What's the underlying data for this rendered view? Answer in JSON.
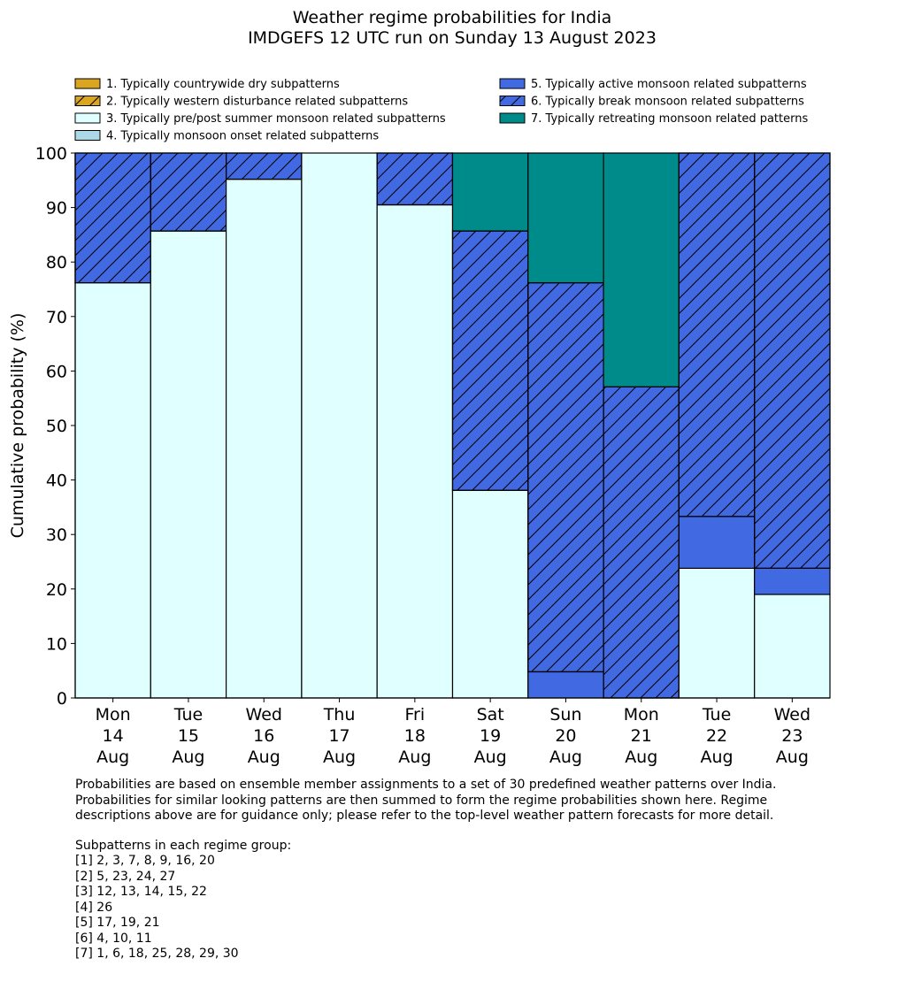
{
  "chart_data": {
    "type": "bar",
    "stacked": true,
    "title": [
      "Weather regime probabilities for India",
      "IMDGEFS 12 UTC run on Sunday 13 August 2023"
    ],
    "ylabel": "Cumulative probability (%)",
    "ylim": [
      0,
      100
    ],
    "yticks": [
      "0",
      "10",
      "20",
      "30",
      "40",
      "50",
      "60",
      "70",
      "80",
      "90",
      "100"
    ],
    "categories": [
      [
        "Mon",
        "14",
        "Aug"
      ],
      [
        "Tue",
        "15",
        "Aug"
      ],
      [
        "Wed",
        "16",
        "Aug"
      ],
      [
        "Thu",
        "17",
        "Aug"
      ],
      [
        "Fri",
        "18",
        "Aug"
      ],
      [
        "Sat",
        "19",
        "Aug"
      ],
      [
        "Sun",
        "20",
        "Aug"
      ],
      [
        "Mon",
        "21",
        "Aug"
      ],
      [
        "Tue",
        "22",
        "Aug"
      ],
      [
        "Wed",
        "23",
        "Aug"
      ]
    ],
    "legend_position": "top",
    "series": [
      {
        "name": "1. Typically countrywide dry subpatterns",
        "color": "#DAA520",
        "hatch": false,
        "values": [
          0,
          0,
          0,
          0,
          0,
          0,
          0,
          0,
          0,
          0
        ]
      },
      {
        "name": "2. Typically western disturbance related subpatterns",
        "color": "#DAA520",
        "hatch": true,
        "values": [
          0,
          0,
          0,
          0,
          0,
          0,
          0,
          0,
          0,
          0
        ]
      },
      {
        "name": "3. Typically pre/post summer monsoon related subpatterns",
        "color": "#E0FFFF",
        "hatch": false,
        "values": [
          76.2,
          85.7,
          95.2,
          100,
          90.5,
          38.1,
          0,
          0,
          23.8,
          19.0
        ]
      },
      {
        "name": "4. Typically monsoon onset related subpatterns",
        "color": "#ADD8E6",
        "hatch": false,
        "values": [
          0,
          0,
          0,
          0,
          0,
          0,
          0,
          0,
          0,
          0
        ]
      },
      {
        "name": "5. Typically active monsoon related subpatterns",
        "color": "#4169E1",
        "hatch": false,
        "values": [
          0,
          0,
          0,
          0,
          0,
          0,
          4.8,
          0,
          9.5,
          4.8
        ]
      },
      {
        "name": "6. Typically break monsoon related subpatterns",
        "color": "#4169E1",
        "hatch": true,
        "values": [
          23.8,
          14.3,
          4.8,
          0,
          9.5,
          47.6,
          71.4,
          57.1,
          66.7,
          76.2
        ]
      },
      {
        "name": "7. Typically retreating monsoon related patterns",
        "color": "#008B8B",
        "hatch": false,
        "values": [
          0,
          0,
          0,
          0,
          0,
          14.3,
          23.8,
          42.9,
          0,
          0
        ]
      }
    ]
  },
  "footer": {
    "note": "Probabilities are based on ensemble member assignments to a set of 30 predefined weather patterns over India.\nProbabilities for similar looking patterns are then summed to form the regime probabilities shown here. Regime\ndescriptions above are for guidance only; please refer to the top-level weather pattern forecasts for more detail.",
    "groups_title": "Subpatterns in each regime group:",
    "groups": [
      "[1] 2, 3, 7, 8, 9, 16, 20",
      "[2] 5, 23, 24, 27",
      "[3] 12, 13, 14, 15, 22",
      "[4] 26",
      "[5] 17, 19, 21",
      "[6] 4, 10, 11",
      "[7] 1, 6, 18, 25, 28, 29, 30"
    ]
  }
}
